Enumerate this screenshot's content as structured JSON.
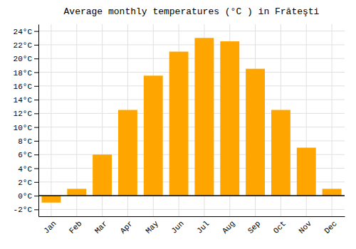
{
  "chart_data": {
    "type": "bar",
    "title": "Average monthly temperatures (°C ) in Frăteşti",
    "categories": [
      "Jan",
      "Feb",
      "Mar",
      "Apr",
      "May",
      "Jun",
      "Jul",
      "Aug",
      "Sep",
      "Oct",
      "Nov",
      "Dec"
    ],
    "values": [
      -1.0,
      1.0,
      6.0,
      12.5,
      17.5,
      21.0,
      23.0,
      22.5,
      18.5,
      12.5,
      7.0,
      1.0
    ],
    "color": "#FFA500",
    "ylim": [
      -3,
      25
    ],
    "yticks": [
      {
        "value": -2,
        "label": "-2°C"
      },
      {
        "value": 0,
        "label": "0°C"
      },
      {
        "value": 2,
        "label": "2°C"
      },
      {
        "value": 4,
        "label": "4°C"
      },
      {
        "value": 6,
        "label": "6°C"
      },
      {
        "value": 8,
        "label": "8°C"
      },
      {
        "value": 10,
        "label": "10°C"
      },
      {
        "value": 12,
        "label": "12°C"
      },
      {
        "value": 14,
        "label": "14°C"
      },
      {
        "value": 16,
        "label": "16°C"
      },
      {
        "value": 18,
        "label": "18°C"
      },
      {
        "value": 20,
        "label": "20°C"
      },
      {
        "value": 22,
        "label": "22°C"
      },
      {
        "value": 24,
        "label": "24°C"
      }
    ],
    "grid": true
  }
}
